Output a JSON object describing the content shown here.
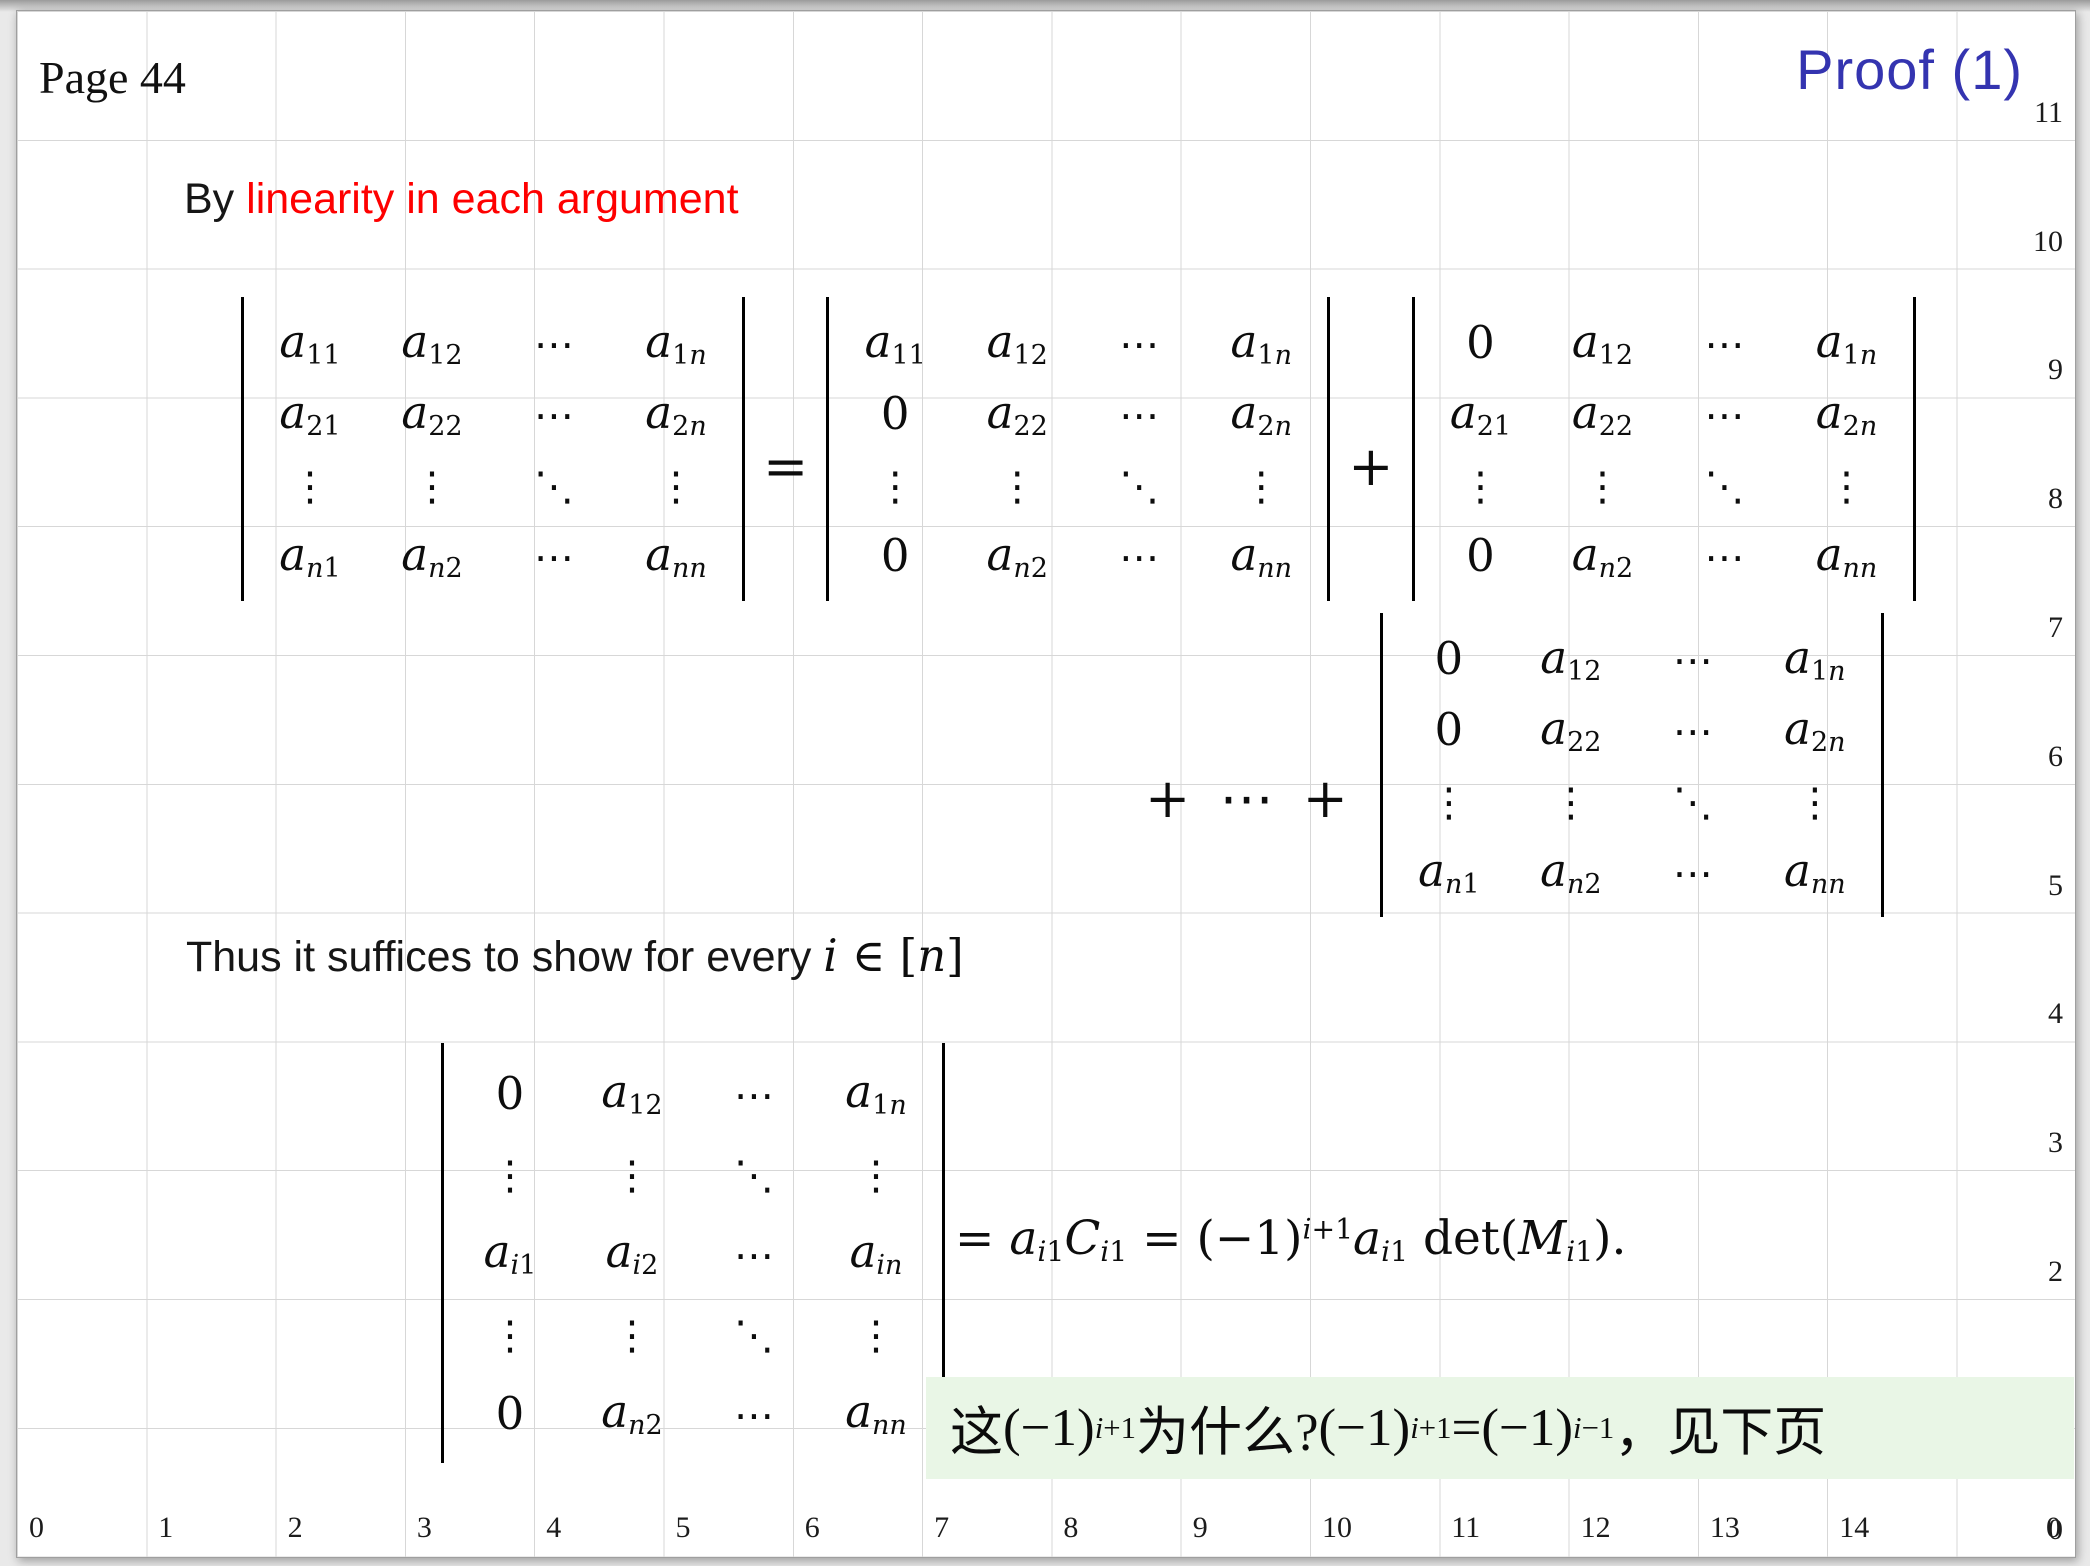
{
  "page_label": "Page 44",
  "title": "Proof (1)",
  "byline": {
    "prefix": "By ",
    "emphasis": "linearity in each argument"
  },
  "thus": {
    "prefix": "Thus it suffices to show for every ",
    "math": [
      {
        "t": "i",
        "it": true
      },
      {
        "t": " ∈ ["
      },
      {
        "t": "n",
        "it": true
      },
      {
        "t": "]"
      }
    ]
  },
  "ops": {
    "equals": "=",
    "plus": "+",
    "plus_cdots_plus": "+ ⋯ +"
  },
  "matrices": {
    "m1": [
      [
        "a_11",
        "a_12",
        "⋯",
        "a_1n"
      ],
      [
        "a_21",
        "a_22",
        "⋯",
        "a_2n"
      ],
      [
        "⋮",
        "⋮",
        "⋱",
        "⋮"
      ],
      [
        "a_n1",
        "a_n2",
        "⋯",
        "a_nn"
      ]
    ],
    "m2": [
      [
        "a_11",
        "a_12",
        "⋯",
        "a_1n"
      ],
      [
        "0",
        "a_22",
        "⋯",
        "a_2n"
      ],
      [
        "⋮",
        "⋮",
        "⋱",
        "⋮"
      ],
      [
        "0",
        "a_n2",
        "⋯",
        "a_nn"
      ]
    ],
    "m3": [
      [
        "0",
        "a_12",
        "⋯",
        "a_1n"
      ],
      [
        "a_21",
        "a_22",
        "⋯",
        "a_2n"
      ],
      [
        "⋮",
        "⋮",
        "⋱",
        "⋮"
      ],
      [
        "0",
        "a_n2",
        "⋯",
        "a_nn"
      ]
    ],
    "m4": [
      [
        "0",
        "a_12",
        "⋯",
        "a_1n"
      ],
      [
        "0",
        "a_22",
        "⋯",
        "a_2n"
      ],
      [
        "⋮",
        "⋮",
        "⋱",
        "⋮"
      ],
      [
        "a_n1",
        "a_n2",
        "⋯",
        "a_nn"
      ]
    ],
    "m5": [
      [
        "0",
        "a_12",
        "⋯",
        "a_1n"
      ],
      [
        "⋮",
        "⋮",
        "⋱",
        "⋮"
      ],
      [
        "a_i1",
        "a_i2",
        "⋯",
        "a_in"
      ],
      [
        "⋮",
        "⋮",
        "⋱",
        "⋮"
      ],
      [
        "0",
        "a_n2",
        "⋯",
        "a_nn"
      ]
    ]
  },
  "equation": [
    {
      "t": "= "
    },
    {
      "t": "a",
      "it": true
    },
    {
      "t": "i1",
      "sub": true
    },
    {
      "t": "C",
      "it": true
    },
    {
      "t": "i1",
      "sub": true
    },
    {
      "t": " = (−1)"
    },
    {
      "t": "i+1",
      "sup": true
    },
    {
      "t": "a",
      "it": true
    },
    {
      "t": "i1",
      "sub": true
    },
    {
      "t": " det("
    },
    {
      "t": "M",
      "it": true
    },
    {
      "t": "i1",
      "sub": true
    },
    {
      "t": ")."
    }
  ],
  "note": {
    "segments": [
      {
        "t": "这 "
      },
      {
        "t": "(−1)"
      },
      {
        "t": "i+1",
        "sup": true
      },
      {
        "t": " 为什么? "
      },
      {
        "t": "(−1)"
      },
      {
        "t": "i+1",
        "sup": true
      },
      {
        "t": " = "
      },
      {
        "t": "(−1)"
      },
      {
        "t": "i−1",
        "sup": true
      },
      {
        "t": "，见下页"
      }
    ]
  },
  "grid": {
    "x_labels": [
      {
        "label": "0",
        "col": 0
      },
      {
        "label": "1",
        "col": 1
      },
      {
        "label": "2",
        "col": 2
      },
      {
        "label": "3",
        "col": 3
      },
      {
        "label": "4",
        "col": 4
      },
      {
        "label": "5",
        "col": 5
      },
      {
        "label": "6",
        "col": 6
      },
      {
        "label": "7",
        "col": 7
      },
      {
        "label": "8",
        "col": 8
      },
      {
        "label": "9",
        "col": 9
      },
      {
        "label": "10",
        "col": 10
      },
      {
        "label": "11",
        "col": 11
      },
      {
        "label": "12",
        "col": 12
      },
      {
        "label": "13",
        "col": 13
      },
      {
        "label": "14",
        "col": 14
      },
      {
        "label": "0",
        "col": 15,
        "align": "right"
      }
    ],
    "y_labels": [
      {
        "label": "11",
        "row": 0
      },
      {
        "label": "10",
        "row": 1
      },
      {
        "label": "9",
        "row": 2
      },
      {
        "label": "8",
        "row": 3
      },
      {
        "label": "7",
        "row": 4
      },
      {
        "label": "6",
        "row": 5
      },
      {
        "label": "5",
        "row": 6
      },
      {
        "label": "4",
        "row": 7
      },
      {
        "label": "3",
        "row": 8
      },
      {
        "label": "2",
        "row": 9
      },
      {
        "label": "0",
        "row": 11
      }
    ]
  },
  "colors": {
    "title": "#3434b0",
    "emphasis": "#fe0000",
    "note_bg": "#e9f6e6",
    "gridline": "#d7d7d7"
  }
}
